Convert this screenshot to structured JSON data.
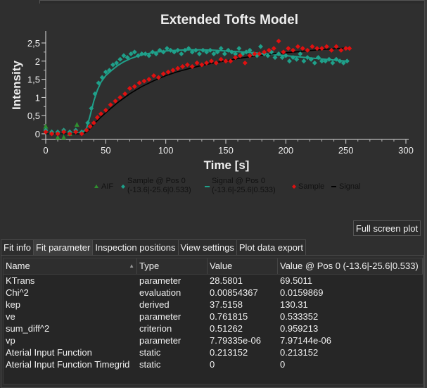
{
  "chart_data": {
    "type": "scatter",
    "title": "Extended Tofts Model",
    "xlabel": "Time [s]",
    "ylabel": "Intensity",
    "xlim": [
      0,
      300
    ],
    "ylim": [
      -0.05,
      2.7
    ],
    "x_ticks": [
      0,
      50,
      100,
      150,
      200,
      250,
      300
    ],
    "x_tick_labels": [
      "0",
      "50",
      "100",
      "150",
      "200",
      "250",
      "300"
    ],
    "y_ticks": [
      0,
      0.5,
      1,
      1.5,
      2,
      2.5
    ],
    "y_tick_labels": [
      "0",
      "0,5",
      "1",
      "1,5",
      "2",
      "2,5"
    ],
    "grid": false,
    "legend_position": "bottom",
    "series": [
      {
        "name": "AIF",
        "kind": "scatter",
        "marker": "triangle",
        "color": "#2f8f2f",
        "x": [
          0,
          5,
          10,
          15,
          20,
          26
        ],
        "y": [
          0.2,
          0.05,
          -0.1,
          -0.1,
          0.0,
          0.25
        ]
      },
      {
        "name": "Sample @ Pos 0 (-13.6|-25.6|0.533)",
        "kind": "scatter",
        "marker": "diamond",
        "color": "#1fa08a",
        "x": [
          0,
          5,
          10,
          15,
          20,
          25,
          30,
          35,
          38,
          41,
          44,
          47,
          50,
          53,
          56,
          59,
          62,
          65,
          68,
          71,
          74,
          77,
          80,
          83,
          86,
          89,
          92,
          95,
          98,
          101,
          104,
          107,
          110,
          113,
          116,
          119,
          122,
          125,
          128,
          131,
          134,
          137,
          140,
          143,
          146,
          149,
          152,
          155,
          158,
          161,
          164,
          167,
          170,
          173,
          176,
          179,
          182,
          185,
          188,
          191,
          194,
          197,
          200,
          203,
          206,
          209,
          212,
          215,
          218,
          221,
          224,
          227,
          230,
          233,
          236,
          239,
          242,
          245,
          248,
          251
        ],
        "y": [
          0.1,
          0.05,
          0.05,
          0.1,
          0.05,
          0.1,
          0.05,
          0.3,
          0.7,
          1.1,
          1.4,
          1.55,
          1.7,
          1.75,
          1.9,
          1.95,
          2.05,
          2.15,
          2.1,
          2.2,
          2.25,
          2.15,
          2.2,
          2.2,
          2.15,
          2.25,
          2.2,
          2.3,
          2.25,
          2.35,
          2.3,
          2.25,
          2.3,
          2.2,
          2.3,
          2.35,
          2.25,
          2.3,
          2.2,
          2.3,
          2.25,
          2.3,
          2.2,
          2.25,
          2.35,
          2.2,
          2.3,
          2.25,
          2.2,
          2.35,
          2.2,
          2.25,
          2.3,
          2.2,
          2.15,
          2.4,
          2.2,
          2.15,
          2.25,
          2.1,
          2.2,
          2.1,
          2.15,
          2.0,
          2.1,
          2.05,
          2.2,
          2.0,
          2.1,
          2.05,
          1.95,
          2.1,
          2.0,
          2.0,
          2.05,
          1.95,
          2.05,
          2.0,
          1.95,
          2.0
        ]
      },
      {
        "name": "Signal @ Pos 0 (-13.6|-25.6|0.533)",
        "kind": "line",
        "color": "#1fa08a",
        "x": [
          0,
          20,
          30,
          34,
          37,
          40,
          43,
          46,
          50,
          55,
          60,
          65,
          70,
          75,
          80,
          90,
          100,
          110,
          120,
          130,
          140,
          150,
          160,
          170,
          180,
          190,
          200,
          210,
          220,
          230,
          240,
          250
        ],
        "y": [
          0.0,
          0.0,
          0.02,
          0.15,
          0.5,
          0.9,
          1.2,
          1.42,
          1.6,
          1.75,
          1.88,
          1.98,
          2.06,
          2.12,
          2.17,
          2.24,
          2.28,
          2.3,
          2.31,
          2.31,
          2.3,
          2.28,
          2.26,
          2.24,
          2.21,
          2.18,
          2.15,
          2.12,
          2.09,
          2.06,
          2.03,
          2.0
        ]
      },
      {
        "name": "Sample",
        "kind": "scatter",
        "marker": "diamond",
        "color": "#e01010",
        "x": [
          0,
          5,
          10,
          15,
          20,
          25,
          30,
          34,
          37,
          40,
          43,
          46,
          50,
          54,
          58,
          62,
          66,
          70,
          74,
          78,
          82,
          86,
          90,
          94,
          98,
          102,
          106,
          110,
          114,
          118,
          122,
          126,
          130,
          134,
          138,
          142,
          146,
          150,
          154,
          158,
          162,
          166,
          170,
          174,
          178,
          182,
          186,
          190,
          194,
          198,
          202,
          206,
          210,
          214,
          218,
          222,
          226,
          230,
          234,
          238,
          242,
          246,
          250,
          253
        ],
        "y": [
          0.05,
          0.0,
          0.0,
          0.05,
          0.0,
          0.05,
          0.0,
          0.1,
          0.2,
          0.3,
          0.45,
          0.55,
          0.65,
          0.8,
          0.9,
          1.0,
          1.1,
          1.25,
          1.3,
          1.4,
          1.45,
          1.5,
          1.6,
          1.55,
          1.65,
          1.7,
          1.75,
          1.8,
          1.85,
          1.9,
          1.85,
          1.95,
          1.9,
          1.95,
          2.0,
          1.95,
          2.05,
          2.0,
          2.0,
          2.1,
          2.15,
          1.95,
          2.15,
          2.2,
          2.2,
          2.25,
          2.3,
          2.35,
          2.55,
          2.25,
          2.35,
          2.3,
          2.4,
          2.35,
          2.3,
          2.4,
          2.35,
          2.35,
          2.4,
          2.3,
          2.4,
          2.3,
          2.35,
          2.35
        ]
      },
      {
        "name": "Signal",
        "kind": "line",
        "color": "#000000",
        "x": [
          0,
          30,
          34,
          38,
          42,
          46,
          50,
          60,
          70,
          80,
          90,
          100,
          110,
          120,
          130,
          140,
          150,
          160,
          170,
          180,
          190,
          200,
          210,
          220,
          230,
          240,
          250
        ],
        "y": [
          0.0,
          0.0,
          0.04,
          0.18,
          0.33,
          0.46,
          0.58,
          0.86,
          1.1,
          1.3,
          1.46,
          1.6,
          1.71,
          1.8,
          1.88,
          1.95,
          2.01,
          2.07,
          2.12,
          2.16,
          2.2,
          2.23,
          2.26,
          2.29,
          2.32,
          2.34,
          2.36
        ]
      }
    ]
  },
  "legend": {
    "aif": "AIF",
    "sample_pos_line1": "Sample @ Pos 0",
    "sample_pos_line2": "(-13.6|-25.6|0.533)",
    "signal_pos_line1": "Signal @ Pos 0",
    "signal_pos_line2": "(-13.6|-25.6|0.533)",
    "sample": "Sample",
    "signal": "Signal"
  },
  "fullscreen_button": "Full screen plot",
  "tabs": [
    {
      "label": "Fit info",
      "active": false
    },
    {
      "label": "Fit parameter",
      "active": true
    },
    {
      "label": "Inspection positions",
      "active": false
    },
    {
      "label": "View settings",
      "active": false
    },
    {
      "label": "Plot data export",
      "active": false
    }
  ],
  "table": {
    "headers": [
      "Name",
      "Type",
      "Value",
      "Value @ Pos 0 (-13.6|-25.6|0.533)"
    ],
    "rows": [
      [
        "KTrans",
        "parameter",
        "28.5801",
        "69.5011"
      ],
      [
        "Chi^2",
        "evaluation",
        "0.00854367",
        "0.0159869"
      ],
      [
        "kep",
        "derived",
        "37.5158",
        "130.31"
      ],
      [
        "ve",
        "parameter",
        "0.761815",
        "0.533352"
      ],
      [
        "sum_diff^2",
        "criterion",
        "0.51262",
        "0.959213"
      ],
      [
        "vp",
        "parameter",
        "7.79335e-06",
        "7.97144e-06"
      ],
      [
        "Aterial Input Function",
        "static",
        "0.213152",
        "0.213152"
      ],
      [
        "Aterial Input Function Timegrid",
        "static",
        "0",
        "0"
      ]
    ]
  },
  "colors": {
    "background": "#2f2f2f",
    "panel": "#262626",
    "text": "#f0f0f0",
    "teal": "#1fa08a",
    "red": "#e01010",
    "green": "#2f8f2f"
  }
}
